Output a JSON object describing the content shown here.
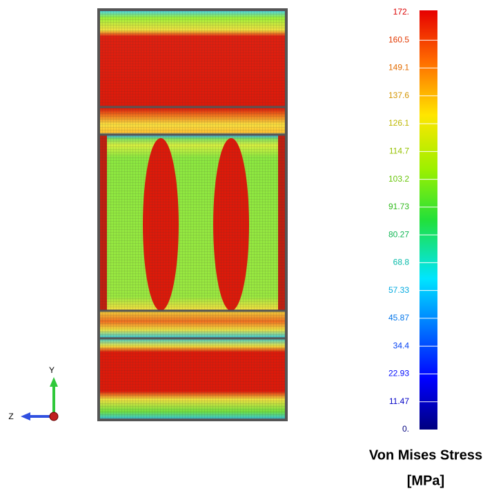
{
  "colorbar": {
    "labels": [
      "172.",
      "160.5",
      "149.1",
      "137.6",
      "126.1",
      "114.7",
      "103.2",
      "91.73",
      "80.27",
      "68.8",
      "57.33",
      "45.87",
      "34.4",
      "22.93",
      "11.47",
      "0."
    ],
    "title_lines": [
      "Von Mises Stress",
      "[MPa]"
    ]
  },
  "axes": {
    "y": "Y",
    "z": "Z"
  }
}
